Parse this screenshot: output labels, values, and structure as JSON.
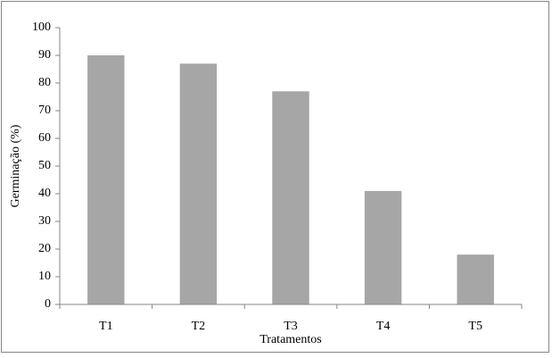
{
  "chart_data": {
    "type": "bar",
    "xlabel": "Tratamentos",
    "ylabel": "Germinação (%)",
    "categories": [
      "T1",
      "T2",
      "T3",
      "T4",
      "T5"
    ],
    "values": [
      90,
      87,
      77,
      41,
      18
    ],
    "color": "#a6a6a6",
    "ylim": [
      0,
      100
    ],
    "yticks": [
      0,
      10,
      20,
      30,
      40,
      50,
      60,
      70,
      80,
      90,
      100
    ],
    "grid": false
  }
}
